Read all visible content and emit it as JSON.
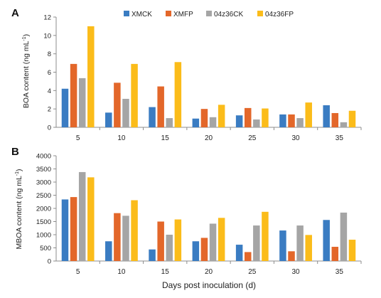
{
  "chart_data": [
    {
      "type": "bar",
      "panel": "A",
      "ylabel": "BOA content (ng mL",
      "ylabel_sup": "-1",
      "ylabel_close": ")",
      "ylim": [
        0,
        12
      ],
      "yticks": [
        "0",
        "2",
        "4",
        "6",
        "8",
        "10",
        "12"
      ],
      "categories": [
        "5",
        "10",
        "15",
        "20",
        "25",
        "30",
        "35"
      ],
      "series": [
        {
          "name": "XMCK",
          "color": "#3a7cc2",
          "values": [
            4.2,
            1.6,
            2.2,
            0.95,
            1.3,
            1.4,
            2.4
          ]
        },
        {
          "name": "XMFP",
          "color": "#e3672a",
          "values": [
            6.9,
            4.85,
            4.45,
            2.0,
            2.1,
            1.4,
            1.55
          ]
        },
        {
          "name": "04z36CK",
          "color": "#a5a5a5",
          "values": [
            5.35,
            3.1,
            1.0,
            1.1,
            0.85,
            1.0,
            0.55
          ]
        },
        {
          "name": "04z36FP",
          "color": "#fbbc1a",
          "values": [
            11.0,
            6.9,
            7.1,
            2.45,
            2.05,
            2.7,
            1.8
          ]
        }
      ],
      "grid": false,
      "legend": "top"
    },
    {
      "type": "bar",
      "panel": "B",
      "ylabel": "MBOA content (ng mL",
      "ylabel_sup": "-1",
      "ylabel_close": ")",
      "ylim": [
        0,
        4000
      ],
      "yticks": [
        "0",
        "500",
        "1000",
        "1500",
        "2000",
        "2500",
        "3000",
        "3500",
        "4000"
      ],
      "categories": [
        "5",
        "10",
        "15",
        "20",
        "25",
        "30",
        "35"
      ],
      "xlabel": "Days post inoculation (d)",
      "series": [
        {
          "name": "XMCK",
          "color": "#3a7cc2",
          "values": [
            2340,
            750,
            440,
            750,
            620,
            1160,
            1560
          ]
        },
        {
          "name": "XMFP",
          "color": "#e3672a",
          "values": [
            2430,
            1820,
            1500,
            880,
            340,
            370,
            540
          ]
        },
        {
          "name": "04z36CK",
          "color": "#a5a5a5",
          "values": [
            3380,
            1720,
            1000,
            1420,
            1350,
            1350,
            1840
          ]
        },
        {
          "name": "04z36FP",
          "color": "#fbbc1a",
          "values": [
            3180,
            2310,
            1580,
            1640,
            1870,
            990,
            810
          ]
        }
      ],
      "grid": false,
      "legend": "none"
    }
  ]
}
